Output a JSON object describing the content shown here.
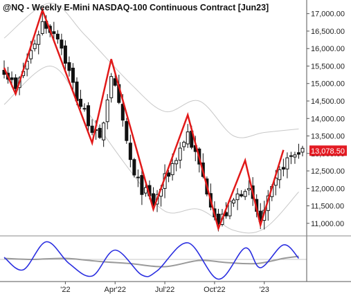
{
  "colors": {
    "candle": "#111111",
    "zigzag": "#e11919",
    "band": "#c8c8c8",
    "oscillator_fast": "#2a2ee0",
    "oscillator_slow": "#9a9a9a",
    "price_tag": "#e31b23",
    "grid": "#e6e6e6"
  },
  "chart_data": {
    "type": "candlestick",
    "title": "@NQ - Weekly  E-Mini NASDAQ-100 Continuous Contract [Jun23]",
    "last_price_label": "13,078.50",
    "last_price": 13078.5,
    "y_axis": {
      "position": "right",
      "range": [
        10700,
        17350
      ],
      "ticks": [
        11000,
        11500,
        12000,
        12500,
        13000,
        13500,
        14000,
        14500,
        15000,
        15500,
        16000,
        16500,
        17000
      ],
      "tick_labels": [
        "11,000.00",
        "11,500.00",
        "12,000.00",
        "12,500.00",
        "13,000.00",
        "13,500.00",
        "14,000.00",
        "14,500.00",
        "15,000.00",
        "15,500.00",
        "16,000.00",
        "16,500.00",
        "17,000.00"
      ]
    },
    "x_axis": {
      "range": [
        "2021-09-13",
        "2023-03-13"
      ],
      "ticks": [
        "2022-01-03",
        "2022-04-04",
        "2022-07-04",
        "2022-10-03",
        "2023-01-02"
      ],
      "tick_labels": [
        "'22",
        "Apr'22",
        "Jul'22",
        "Oct'22",
        "'23"
      ]
    },
    "price_anchors": [
      {
        "date": "2021-09-13",
        "close": 15450
      },
      {
        "date": "2021-10-04",
        "close": 14800
      },
      {
        "date": "2021-11-22",
        "close": 16750
      },
      {
        "date": "2021-12-20",
        "close": 16400
      },
      {
        "date": "2022-01-24",
        "close": 14600
      },
      {
        "date": "2022-03-07",
        "close": 13300
      },
      {
        "date": "2022-03-28",
        "close": 15300
      },
      {
        "date": "2022-05-09",
        "close": 12300
      },
      {
        "date": "2022-06-13",
        "close": 11550
      },
      {
        "date": "2022-08-15",
        "close": 13600
      },
      {
        "date": "2022-10-10",
        "close": 11000
      },
      {
        "date": "2022-11-28",
        "close": 12100
      },
      {
        "date": "2022-12-26",
        "close": 11050
      },
      {
        "date": "2023-02-06",
        "close": 12700
      },
      {
        "date": "2023-03-06",
        "close": 13078.5
      }
    ],
    "zigzag": [
      {
        "date": "2021-09-13",
        "value": 15450
      },
      {
        "date": "2021-10-04",
        "value": 14700
      },
      {
        "date": "2021-11-22",
        "value": 17100
      },
      {
        "date": "2022-02-21",
        "value": 13300
      },
      {
        "date": "2022-03-28",
        "value": 15700
      },
      {
        "date": "2022-06-13",
        "value": 11400
      },
      {
        "date": "2022-08-15",
        "value": 14100
      },
      {
        "date": "2022-10-10",
        "value": 10850
      },
      {
        "date": "2022-11-28",
        "value": 12800
      },
      {
        "date": "2022-12-26",
        "value": 10950
      },
      {
        "date": "2023-02-06",
        "value": 13100
      }
    ],
    "bands": {
      "upper": [
        {
          "date": "2021-09-13",
          "value": 16300
        },
        {
          "date": "2021-12-06",
          "value": 17300
        },
        {
          "date": "2022-02-07",
          "value": 16400
        },
        {
          "date": "2022-05-02",
          "value": 15000
        },
        {
          "date": "2022-07-04",
          "value": 14200
        },
        {
          "date": "2022-09-05",
          "value": 14500
        },
        {
          "date": "2022-11-07",
          "value": 13500
        },
        {
          "date": "2023-01-02",
          "value": 13600
        },
        {
          "date": "2023-03-06",
          "value": 13700
        }
      ],
      "lower": [
        {
          "date": "2021-09-13",
          "value": 14400
        },
        {
          "date": "2021-12-06",
          "value": 15500
        },
        {
          "date": "2022-02-07",
          "value": 14300
        },
        {
          "date": "2022-05-02",
          "value": 12500
        },
        {
          "date": "2022-07-04",
          "value": 11350
        },
        {
          "date": "2022-09-05",
          "value": 11400
        },
        {
          "date": "2022-11-07",
          "value": 10800
        },
        {
          "date": "2023-01-02",
          "value": 10850
        },
        {
          "date": "2023-03-06",
          "value": 11900
        }
      ]
    },
    "oscillator": {
      "range": [
        -1,
        1
      ],
      "fast": [
        {
          "date": "2021-09-13",
          "value": 0.1
        },
        {
          "date": "2021-10-18",
          "value": -0.5
        },
        {
          "date": "2021-11-29",
          "value": 0.85
        },
        {
          "date": "2022-01-10",
          "value": -0.2
        },
        {
          "date": "2022-02-21",
          "value": -0.8
        },
        {
          "date": "2022-04-04",
          "value": 0.45
        },
        {
          "date": "2022-05-23",
          "value": -0.75
        },
        {
          "date": "2022-06-20",
          "value": -0.55
        },
        {
          "date": "2022-08-15",
          "value": 0.8
        },
        {
          "date": "2022-10-10",
          "value": -0.95
        },
        {
          "date": "2022-11-28",
          "value": 0.55
        },
        {
          "date": "2022-12-26",
          "value": -0.4
        },
        {
          "date": "2023-02-06",
          "value": 0.7
        },
        {
          "date": "2023-03-06",
          "value": 0.05
        }
      ],
      "slow": [
        {
          "date": "2021-09-13",
          "value": 0.05
        },
        {
          "date": "2021-11-01",
          "value": 0.0
        },
        {
          "date": "2022-01-03",
          "value": 0.05
        },
        {
          "date": "2022-03-07",
          "value": -0.1
        },
        {
          "date": "2022-05-02",
          "value": -0.2
        },
        {
          "date": "2022-07-04",
          "value": -0.35
        },
        {
          "date": "2022-09-05",
          "value": -0.05
        },
        {
          "date": "2022-10-24",
          "value": -0.15
        },
        {
          "date": "2022-12-19",
          "value": -0.2
        },
        {
          "date": "2023-02-06",
          "value": 0.05
        },
        {
          "date": "2023-03-06",
          "value": 0.15
        }
      ]
    }
  }
}
